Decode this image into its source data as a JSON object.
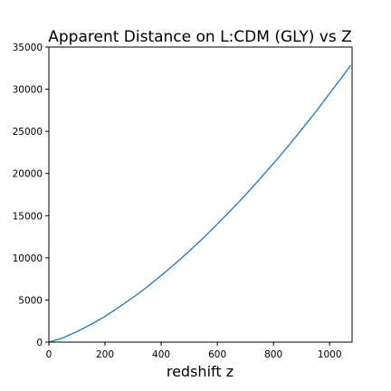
{
  "chart_data": {
    "type": "line",
    "title": "Apparent Distance on L:CDM (GLY) vs Z",
    "xlabel": "redshift z",
    "ylabel": "",
    "xlim": [
      0,
      1080
    ],
    "ylim": [
      0,
      35000
    ],
    "x_ticks": [
      0,
      200,
      400,
      600,
      800,
      1000
    ],
    "y_ticks": [
      0,
      5000,
      10000,
      15000,
      20000,
      25000,
      30000,
      35000
    ],
    "x_tick_labels": [
      "0",
      "200",
      "400",
      "600",
      "800",
      "1000"
    ],
    "y_tick_labels": [
      "0",
      "5000",
      "10000",
      "15000",
      "20000",
      "25000",
      "30000",
      "35000"
    ],
    "grid": false,
    "legend": "none",
    "colors": {
      "line": "#1f77b4",
      "axes": "#000000",
      "background": "#ffffff"
    },
    "series": [
      {
        "x": [
          0,
          50,
          100,
          150,
          200,
          250,
          300,
          350,
          400,
          450,
          500,
          550,
          600,
          650,
          700,
          750,
          800,
          850,
          900,
          950,
          1000,
          1050,
          1075
        ],
        "y": [
          0,
          500,
          1250,
          2100,
          3050,
          4150,
          5300,
          6550,
          7900,
          9300,
          10800,
          12350,
          14000,
          15700,
          17450,
          19300,
          21200,
          23150,
          25200,
          27300,
          29500,
          31700,
          32850
        ]
      }
    ]
  }
}
